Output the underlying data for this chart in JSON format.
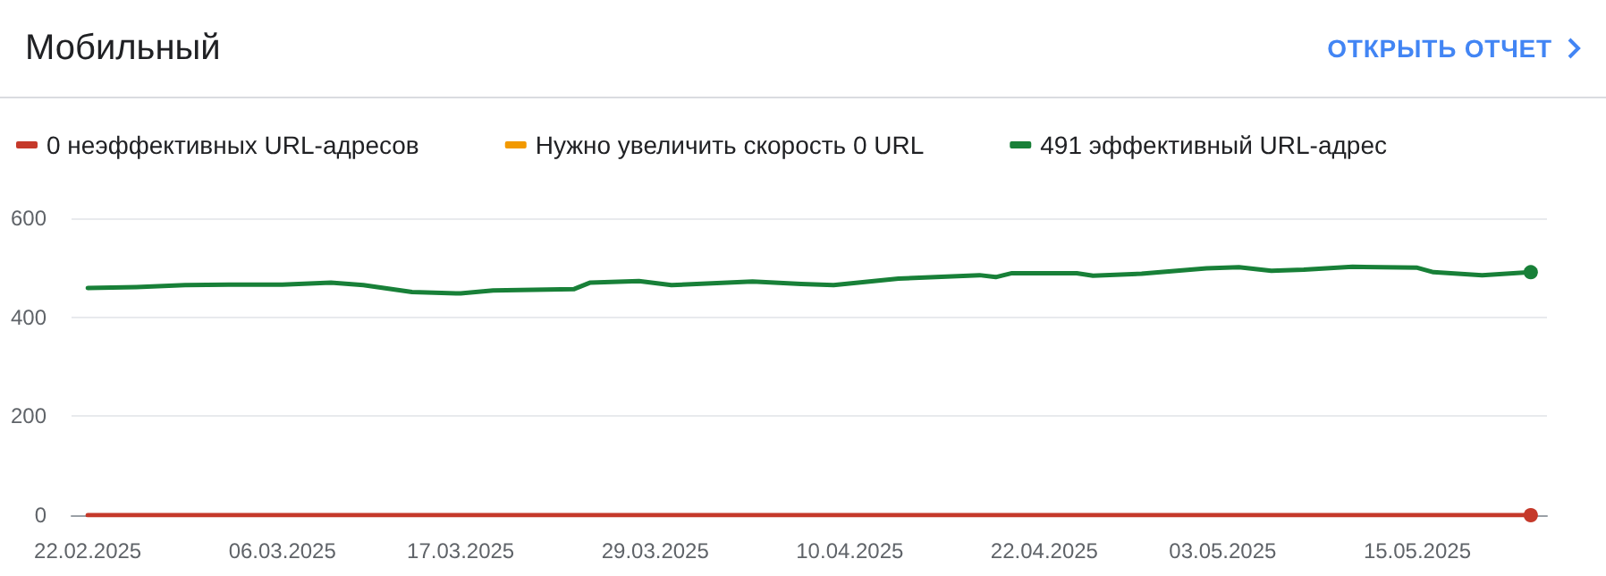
{
  "chart_data": {
    "type": "line",
    "title": "Мобильный",
    "annotations": [
      "ОТКРЫТЬ ОТЧЕТ"
    ],
    "legend": "top left",
    "grid": "y",
    "line_style": "solid",
    "x": [
      "2025-02-22",
      "2025-02-25",
      "2025-02-28",
      "2025-03-03",
      "2025-03-06",
      "2025-03-09",
      "2025-03-11",
      "2025-03-14",
      "2025-03-17",
      "2025-03-19",
      "2025-03-24",
      "2025-03-25",
      "2025-03-28",
      "2025-03-30",
      "2025-04-04",
      "2025-04-07",
      "2025-04-09",
      "2025-04-13",
      "2025-04-18",
      "2025-04-19",
      "2025-04-20",
      "2025-04-24",
      "2025-04-25",
      "2025-04-28",
      "2025-05-02",
      "2025-05-04",
      "2025-05-06",
      "2025-05-08",
      "2025-05-11",
      "2025-05-15",
      "2025-05-16",
      "2025-05-19",
      "2025-05-22"
    ],
    "xlim": [
      "2025-02-21",
      "2025-05-23"
    ],
    "xticks": [
      {
        "value": "2025-02-22",
        "label": "22.02.2025"
      },
      {
        "value": "2025-03-06",
        "label": "06.03.2025"
      },
      {
        "value": "2025-03-17",
        "label": "17.03.2025"
      },
      {
        "value": "2025-03-29",
        "label": "29.03.2025"
      },
      {
        "value": "2025-04-10",
        "label": "10.04.2025"
      },
      {
        "value": "2025-04-22",
        "label": "22.04.2025"
      },
      {
        "value": "2025-05-03",
        "label": "03.05.2025"
      },
      {
        "value": "2025-05-15",
        "label": "15.05.2025"
      }
    ],
    "ylim": [
      0,
      600
    ],
    "yticks": [
      0,
      200,
      400,
      600
    ],
    "series": [
      {
        "name": "0 неэффективных URL-адресов",
        "color": "#c5392a",
        "x": [
          "2025-02-22",
          "2025-05-22"
        ],
        "values": [
          0,
          0
        ]
      },
      {
        "name": "Нужно увеличить скорость 0 URL",
        "color": "#f29900",
        "values": [
          null,
          null,
          null,
          null,
          null,
          null,
          null,
          null,
          null,
          null,
          null,
          null,
          null,
          null,
          null,
          null,
          null,
          null,
          null,
          null,
          null,
          null,
          null,
          null,
          null,
          null,
          null,
          null,
          null,
          null,
          null,
          null,
          null
        ]
      },
      {
        "name": "491 эффективный URL-адрес",
        "color": "#188038",
        "values": [
          459,
          461,
          465,
          466,
          466,
          470,
          465,
          451,
          448,
          454,
          457,
          470,
          473,
          465,
          472,
          467,
          465,
          478,
          485,
          481,
          489,
          489,
          484,
          488,
          499,
          501,
          494,
          496,
          502,
          500,
          491,
          485,
          491
        ]
      }
    ]
  }
}
